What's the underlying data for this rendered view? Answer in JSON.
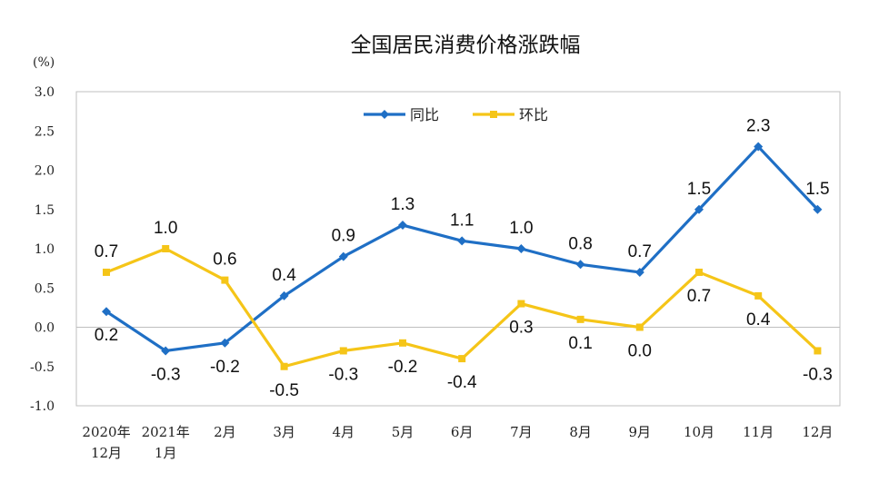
{
  "chart_data": {
    "type": "line",
    "title": "全国居民消费价格涨跌幅",
    "ylabel": "(%)",
    "xlabel": "",
    "ylim": [
      -1.0,
      3.0
    ],
    "yticks": [
      "3.0",
      "2.5",
      "2.0",
      "1.5",
      "1.0",
      "0.5",
      "0.0",
      "-0.5",
      "-1.0"
    ],
    "categories": [
      [
        "2020年",
        "12月"
      ],
      [
        "2021年",
        "1月"
      ],
      [
        "2月"
      ],
      [
        "3月"
      ],
      [
        "4月"
      ],
      [
        "5月"
      ],
      [
        "6月"
      ],
      [
        "7月"
      ],
      [
        "8月"
      ],
      [
        "9月"
      ],
      [
        "10月"
      ],
      [
        "11月"
      ],
      [
        "12月"
      ]
    ],
    "series": [
      {
        "name": "同比",
        "color": "#1f6fc5",
        "marker": "diamond",
        "values": [
          0.2,
          -0.3,
          -0.2,
          0.4,
          0.9,
          1.3,
          1.1,
          1.0,
          0.8,
          0.7,
          1.5,
          2.3,
          1.5
        ],
        "labels": [
          "0.2",
          "-0.3",
          "-0.2",
          "0.4",
          "0.9",
          "1.3",
          "1.1",
          "1.0",
          "0.8",
          "0.7",
          "1.5",
          "2.3",
          "1.5"
        ],
        "label_pos": [
          "below",
          "below",
          "below",
          "above",
          "above",
          "above",
          "above",
          "above",
          "above",
          "above",
          "above",
          "above",
          "above"
        ]
      },
      {
        "name": "环比",
        "color": "#f5c518",
        "marker": "square",
        "values": [
          0.7,
          1.0,
          0.6,
          -0.5,
          -0.3,
          -0.2,
          -0.4,
          0.3,
          0.1,
          0.0,
          0.7,
          0.4,
          -0.3
        ],
        "labels": [
          "0.7",
          "1.0",
          "0.6",
          "-0.5",
          "-0.3",
          "-0.2",
          "-0.4",
          "0.3",
          "0.1",
          "0.0",
          "0.7",
          "0.4",
          "-0.3"
        ],
        "label_pos": [
          "above",
          "above",
          "above",
          "below",
          "below",
          "below",
          "below",
          "below",
          "below",
          "below",
          "below",
          "below",
          "below"
        ]
      }
    ],
    "legend": "top-center",
    "grid": false
  }
}
